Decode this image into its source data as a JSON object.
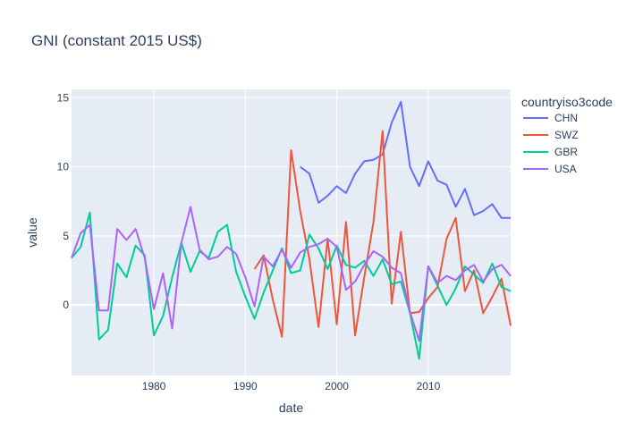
{
  "chart_data": {
    "type": "line",
    "title": "GNI (constant 2015 US$)",
    "xlabel": "date",
    "ylabel": "value",
    "xlim": [
      1971,
      2019
    ],
    "ylim": [
      -5.1,
      15.6
    ],
    "x_ticks": [
      1980,
      1990,
      2000,
      2010
    ],
    "y_ticks": [
      0,
      5,
      10,
      15
    ],
    "legend_title": "countryiso3code",
    "legend_position": "top-right",
    "grid": true,
    "series": [
      {
        "name": "CHN",
        "color": "#636efa",
        "x": [
          1996,
          1997,
          1998,
          1999,
          2000,
          2001,
          2002,
          2003,
          2004,
          2005,
          2006,
          2007,
          2008,
          2009,
          2010,
          2011,
          2012,
          2013,
          2014,
          2015,
          2016,
          2017,
          2018,
          2019
        ],
        "y": [
          10.0,
          9.5,
          7.4,
          7.9,
          8.6,
          8.1,
          9.5,
          10.4,
          10.5,
          10.9,
          13.2,
          14.7,
          10.0,
          8.6,
          10.4,
          9.0,
          8.7,
          7.1,
          8.4,
          6.5,
          6.8,
          7.3,
          6.3,
          6.3
        ]
      },
      {
        "name": "SWZ",
        "color": "#ef553b",
        "x": [
          1991,
          1992,
          1993,
          1994,
          1995,
          1996,
          1997,
          1998,
          1999,
          2000,
          2001,
          2002,
          2003,
          2004,
          2005,
          2006,
          2007,
          2008,
          2009,
          2010,
          2011,
          2012,
          2013,
          2014,
          2015,
          2016,
          2017,
          2018,
          2019
        ],
        "y": [
          2.6,
          3.6,
          0.4,
          -2.3,
          11.2,
          6.8,
          3.3,
          -1.6,
          4.8,
          -1.4,
          6.0,
          -2.2,
          2.0,
          6.0,
          12.6,
          0.1,
          5.3,
          -0.6,
          -0.5,
          0.5,
          1.3,
          4.8,
          6.3,
          1.0,
          2.5,
          -0.6,
          0.6,
          1.9,
          -1.5
        ]
      },
      {
        "name": "GBR",
        "color": "#00cc96",
        "x": [
          1971,
          1972,
          1973,
          1974,
          1975,
          1976,
          1977,
          1978,
          1979,
          1980,
          1981,
          1982,
          1983,
          1984,
          1985,
          1986,
          1987,
          1988,
          1989,
          1990,
          1991,
          1992,
          1993,
          1994,
          1995,
          1996,
          1997,
          1998,
          1999,
          2000,
          2001,
          2002,
          2003,
          2004,
          2005,
          2006,
          2007,
          2008,
          2009,
          2010,
          2011,
          2012,
          2013,
          2014,
          2015,
          2016,
          2017,
          2018,
          2019
        ],
        "y": [
          3.4,
          4.2,
          6.7,
          -2.5,
          -1.8,
          3.0,
          2.0,
          4.3,
          3.6,
          -2.2,
          -0.8,
          2.0,
          4.5,
          2.4,
          3.9,
          3.4,
          5.3,
          5.8,
          2.4,
          0.6,
          -1.0,
          0.9,
          2.5,
          4.1,
          2.3,
          2.5,
          5.1,
          4.1,
          2.6,
          4.3,
          2.9,
          2.7,
          3.2,
          2.1,
          3.3,
          1.5,
          1.7,
          -0.6,
          -3.9,
          2.8,
          1.4,
          0.0,
          1.2,
          2.8,
          2.2,
          1.6,
          3.0,
          1.3,
          1.0
        ]
      },
      {
        "name": "USA",
        "color": "#ab63fa",
        "x": [
          1971,
          1972,
          1973,
          1974,
          1975,
          1976,
          1977,
          1978,
          1979,
          1980,
          1981,
          1982,
          1983,
          1984,
          1985,
          1986,
          1987,
          1988,
          1989,
          1990,
          1991,
          1992,
          1993,
          1994,
          1995,
          1996,
          1997,
          1998,
          1999,
          2000,
          2001,
          2002,
          2003,
          2004,
          2005,
          2006,
          2007,
          2008,
          2009,
          2010,
          2011,
          2012,
          2013,
          2014,
          2015,
          2016,
          2017,
          2018,
          2019
        ],
        "y": [
          3.4,
          5.2,
          5.8,
          -0.4,
          -0.4,
          5.5,
          4.7,
          5.5,
          3.4,
          -0.3,
          2.3,
          -1.7,
          4.5,
          7.1,
          4.0,
          3.3,
          3.5,
          4.2,
          3.7,
          2.0,
          -0.1,
          3.5,
          2.8,
          4.0,
          2.7,
          3.8,
          4.2,
          4.4,
          4.8,
          4.2,
          1.1,
          1.7,
          2.9,
          3.9,
          3.5,
          2.7,
          2.3,
          -0.5,
          -2.6,
          2.8,
          1.6,
          2.1,
          1.8,
          2.5,
          2.9,
          1.7,
          2.6,
          2.9,
          2.1
        ]
      }
    ]
  }
}
